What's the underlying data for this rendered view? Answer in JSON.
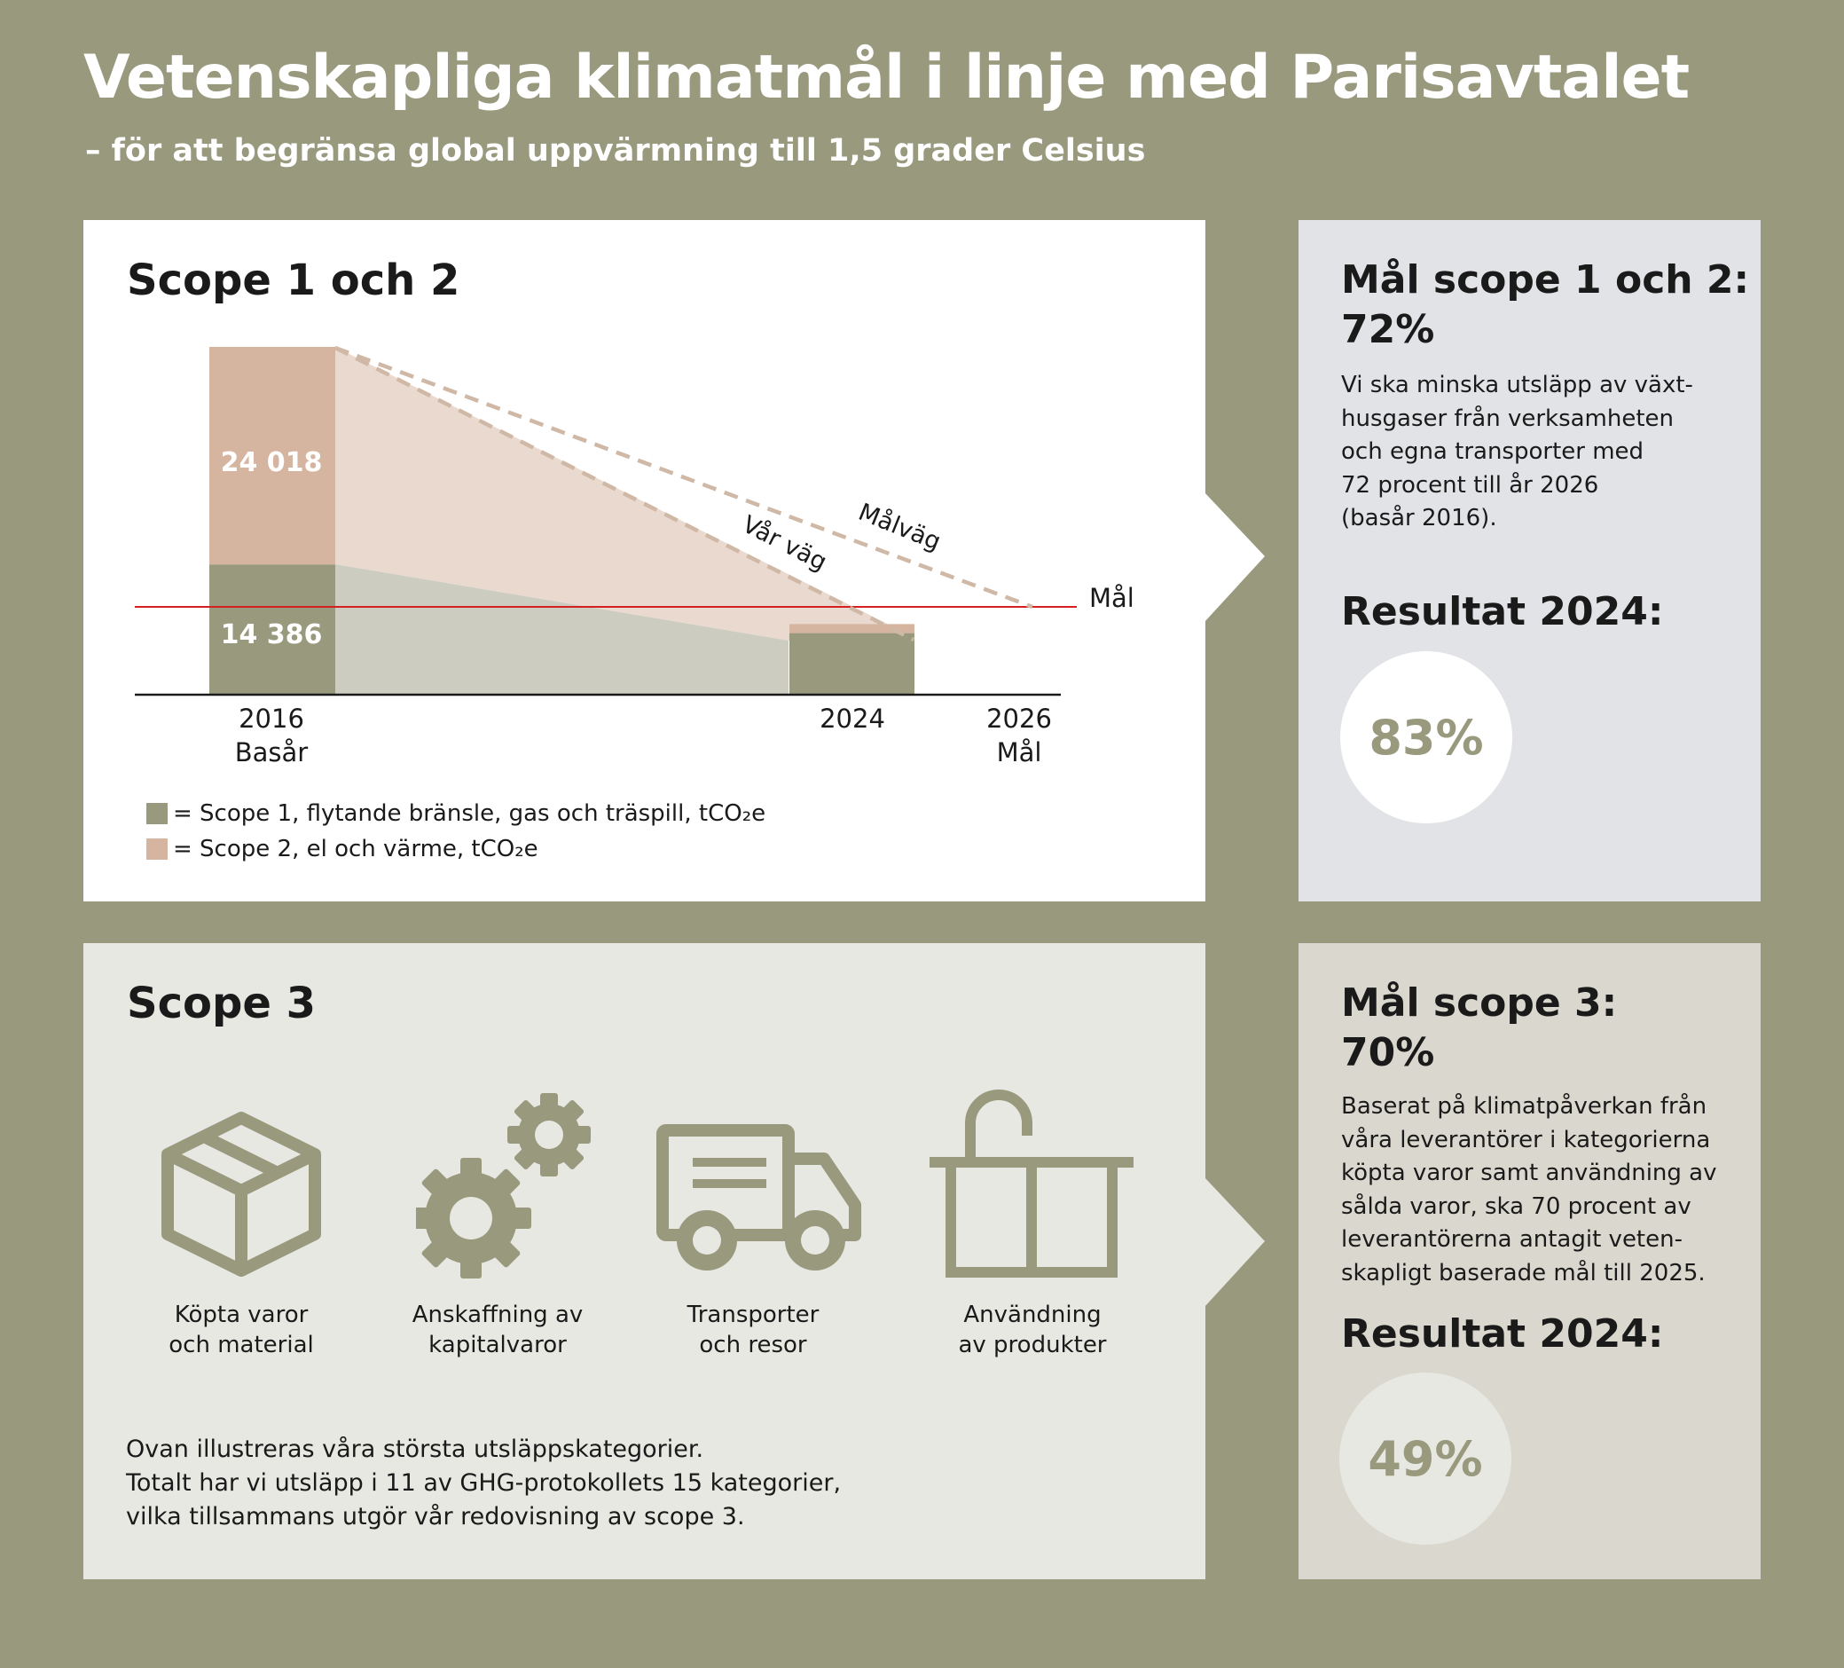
{
  "header": {
    "title": "Vetenskapliga klimatmål i linje med Parisavtalet",
    "subtitle": "– för att begränsa global uppvärmning till 1,5 grader Celsius"
  },
  "scope12": {
    "heading": "Scope 1 och 2",
    "target_label": "Mål",
    "path_our_label": "Vår väg",
    "path_target_label": "Målväg",
    "legend": [
      {
        "text": "= Scope 1, flytande bränsle, gas och träspill, tCO₂e",
        "color": "#99997e"
      },
      {
        "text": "= Scope 2, el och värme, tCO₂e",
        "color": "#d5b5a0"
      }
    ]
  },
  "chart_data": {
    "type": "bar",
    "categories": [
      "2016\nBasår",
      "2024",
      "2026\nMål"
    ],
    "series": [
      {
        "name": "Scope 1, flytande bränsle, gas och träspill, tCO₂e",
        "values": [
          14386,
          6800,
          null
        ],
        "color": "#99997e"
      },
      {
        "name": "Scope 2, el och värme, tCO₂e",
        "values": [
          24018,
          1000,
          null
        ],
        "color": "#d5b5a0"
      }
    ],
    "data_labels": [
      "24 018",
      "14 386"
    ],
    "target_value": 9700,
    "ylim": [
      0,
      39000
    ],
    "grid": false,
    "stacked": true
  },
  "scope12_side": {
    "heading": "Mål scope 1 och 2:",
    "value": "72%",
    "text": "Vi ska minska utsläpp av växt-\nhusgaser från verksamheten\noch egna transporter med\n72 procent till år 2026\n(basår 2016).",
    "result_heading": "Resultat 2024:",
    "result_value": "83%"
  },
  "scope3": {
    "heading": "Scope 3",
    "icons": [
      {
        "icon": "box-icon",
        "label": "Köpta varor\noch material"
      },
      {
        "icon": "gears-icon",
        "label": "Anskaffning av\nkapitalvaror"
      },
      {
        "icon": "truck-icon",
        "label": "Transporter\noch resor"
      },
      {
        "icon": "bin-icon",
        "label": "Användning\nav produkter"
      }
    ],
    "footnote": "Ovan illustreras våra största utsläppskategorier.\nTotalt har vi utsläpp i 11 av GHG-protokollets 15 kategorier,\nvilka tillsammans utgör vår redovisning av scope 3."
  },
  "scope3_side": {
    "heading": "Mål scope 3:",
    "value": "70%",
    "text": "Baserat på klimatpåverkan från\nvåra leverantörer i kategorierna\nköpta varor samt användning av\nsålda varor, ska 70 procent av\nleverantörerna antagit veten-\nskapligt baserade mål till 2025.",
    "result_heading": "Resultat 2024:",
    "result_value": "49%"
  },
  "colors": {
    "background": "#99997e",
    "scope1": "#99997e",
    "scope2": "#d5b5a0",
    "target_line": "#d42020"
  }
}
